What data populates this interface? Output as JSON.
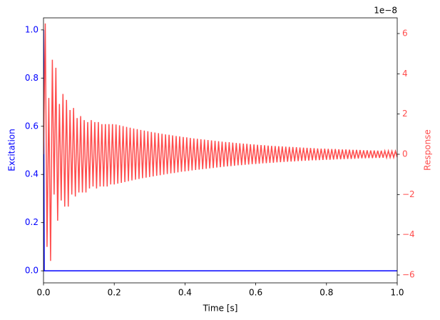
{
  "chart_data": {
    "type": "line",
    "xlabel": "Time [s]",
    "ylabel": "Excitation",
    "y2label": "Response",
    "y2_offset_text": "1e−8",
    "xlim": [
      0,
      1
    ],
    "ylim": [
      -0.05,
      1.05
    ],
    "y2lim": [
      -6.39,
      6.78
    ],
    "xticks": [
      {
        "value": 0,
        "label": "0.0"
      },
      0.2,
      0.4,
      0.6,
      0.8,
      {
        "value": 1,
        "label": "1.0"
      }
    ],
    "yticks": [
      {
        "value": 0,
        "label": "0.0"
      },
      0.2,
      0.4,
      0.6,
      0.8,
      {
        "value": 1,
        "label": "1.0"
      }
    ],
    "y2ticks": [
      {
        "value": -6,
        "label": "−6"
      },
      {
        "value": -4,
        "label": "−4"
      },
      {
        "value": -2,
        "label": "−2"
      },
      0,
      2,
      4,
      6
    ],
    "series": [
      {
        "name": "Excitation",
        "color": "#0000ff",
        "x": [
          0,
          0.002,
          1
        ],
        "values": [
          1,
          0,
          0
        ]
      },
      {
        "name": "Response",
        "color": "#ff4d4d",
        "axis": "y2",
        "x": [
          0,
          0.005,
          0.01,
          0.015,
          0.02,
          0.025,
          0.03,
          0.035,
          0.04,
          0.045,
          0.05,
          0.055,
          0.06,
          0.065,
          0.07,
          0.075,
          0.08,
          0.085,
          0.09,
          0.095,
          0.1,
          0.105,
          0.11,
          0.115,
          0.12,
          0.125,
          0.13,
          0.135,
          0.14,
          0.145,
          0.15,
          0.155,
          0.16,
          0.165,
          0.17,
          0.175,
          0.18,
          0.185,
          0.19,
          0.195,
          0.2,
          0.205,
          0.21,
          0.215,
          0.22,
          0.225,
          0.23,
          0.235,
          0.24,
          0.245,
          0.25,
          0.255,
          0.26,
          0.265,
          0.27,
          0.275,
          0.28,
          0.285,
          0.29,
          0.295,
          0.3,
          0.305,
          0.31,
          0.315,
          0.32,
          0.325,
          0.33,
          0.335,
          0.34,
          0.345,
          0.35,
          0.355,
          0.36,
          0.365,
          0.37,
          0.375,
          0.38,
          0.385,
          0.39,
          0.395,
          0.4,
          0.405,
          0.41,
          0.415,
          0.42,
          0.425,
          0.43,
          0.435,
          0.44,
          0.445,
          0.45,
          0.455,
          0.46,
          0.465,
          0.47,
          0.475,
          0.48,
          0.485,
          0.49,
          0.495,
          0.5,
          0.505,
          0.51,
          0.515,
          0.52,
          0.525,
          0.53,
          0.535,
          0.54,
          0.545,
          0.55,
          0.555,
          0.56,
          0.565,
          0.57,
          0.575,
          0.58,
          0.585,
          0.59,
          0.595,
          0.6,
          0.605,
          0.61,
          0.615,
          0.62,
          0.625,
          0.63,
          0.635,
          0.64,
          0.645,
          0.65,
          0.655,
          0.66,
          0.665,
          0.67,
          0.675,
          0.68,
          0.685,
          0.69,
          0.695,
          0.7,
          0.705,
          0.71,
          0.715,
          0.72,
          0.725,
          0.73,
          0.735,
          0.74,
          0.745,
          0.75,
          0.755,
          0.76,
          0.765,
          0.77,
          0.775,
          0.78,
          0.785,
          0.79,
          0.795,
          0.8,
          0.805,
          0.81,
          0.815,
          0.82,
          0.825,
          0.83,
          0.835,
          0.84,
          0.845,
          0.85,
          0.855,
          0.86,
          0.865,
          0.87,
          0.875,
          0.88,
          0.885,
          0.89,
          0.895,
          0.9,
          0.905,
          0.91,
          0.915,
          0.92,
          0.925,
          0.93,
          0.935,
          0.94,
          0.945,
          0.95,
          0.955,
          0.96,
          0.965,
          0.97,
          0.975,
          0.98,
          0.985,
          0.99,
          0.995,
          1
        ],
        "values": [
          0,
          6.5,
          -4.6,
          2.8,
          -5.3,
          4.7,
          -2.0,
          4.3,
          -3.3,
          2.5,
          -2.3,
          3.0,
          -2.6,
          2.7,
          -2.6,
          2.2,
          -2.0,
          2.3,
          -2.1,
          1.8,
          -1.9,
          1.9,
          -1.9,
          1.7,
          -1.9,
          1.6,
          -1.7,
          1.7,
          -1.6,
          1.6,
          -1.7,
          1.6,
          -1.6,
          1.5,
          -1.6,
          1.5,
          -1.6,
          1.5,
          -1.5,
          1.5,
          -1.5,
          1.48,
          -1.46,
          1.44,
          -1.42,
          1.4,
          -1.38,
          1.36,
          -1.34,
          1.32,
          -1.3,
          1.28,
          -1.26,
          1.25,
          -1.23,
          1.21,
          -1.19,
          1.18,
          -1.16,
          1.15,
          -1.13,
          1.11,
          -1.1,
          1.08,
          -1.07,
          1.05,
          -1.04,
          1.02,
          -1.01,
          0.99,
          -0.98,
          0.97,
          -0.95,
          0.94,
          -0.93,
          0.91,
          -0.9,
          0.89,
          -0.87,
          0.86,
          -0.85,
          0.84,
          -0.83,
          0.81,
          -0.8,
          0.79,
          -0.78,
          0.77,
          -0.76,
          0.75,
          -0.74,
          0.73,
          -0.72,
          0.71,
          -0.7,
          0.69,
          -0.68,
          0.67,
          -0.66,
          0.65,
          -0.64,
          0.63,
          -0.62,
          0.61,
          -0.6,
          0.6,
          -0.59,
          0.58,
          -0.57,
          0.56,
          -0.55,
          0.55,
          -0.54,
          0.53,
          -0.52,
          0.52,
          -0.51,
          0.5,
          -0.49,
          0.49,
          -0.48,
          0.47,
          -0.47,
          0.46,
          -0.45,
          0.45,
          -0.44,
          0.43,
          -0.43,
          0.42,
          -0.42,
          0.41,
          -0.4,
          0.4,
          -0.39,
          0.39,
          -0.38,
          0.38,
          -0.37,
          0.37,
          -0.36,
          0.36,
          -0.35,
          0.35,
          -0.34,
          0.34,
          -0.33,
          0.33,
          -0.32,
          0.32,
          -0.31,
          0.31,
          -0.3,
          0.3,
          -0.3,
          0.29,
          -0.29,
          0.28,
          -0.28,
          0.28,
          -0.27,
          0.27,
          -0.27,
          0.26,
          -0.26,
          0.26,
          -0.25,
          0.25,
          -0.25,
          0.24,
          -0.24,
          0.24,
          -0.23,
          0.23,
          -0.23,
          0.22,
          -0.22,
          0.22,
          -0.21,
          0.21,
          -0.2,
          0.2,
          -0.2,
          0.2,
          -0.19,
          0.19,
          -0.19,
          0.19,
          -0.18,
          0.18,
          -0.18,
          0.18,
          -0.17,
          0.17,
          -0.17,
          0.17,
          -0.16,
          0.16,
          -0.16,
          0.16,
          -0.15
        ]
      }
    ]
  }
}
